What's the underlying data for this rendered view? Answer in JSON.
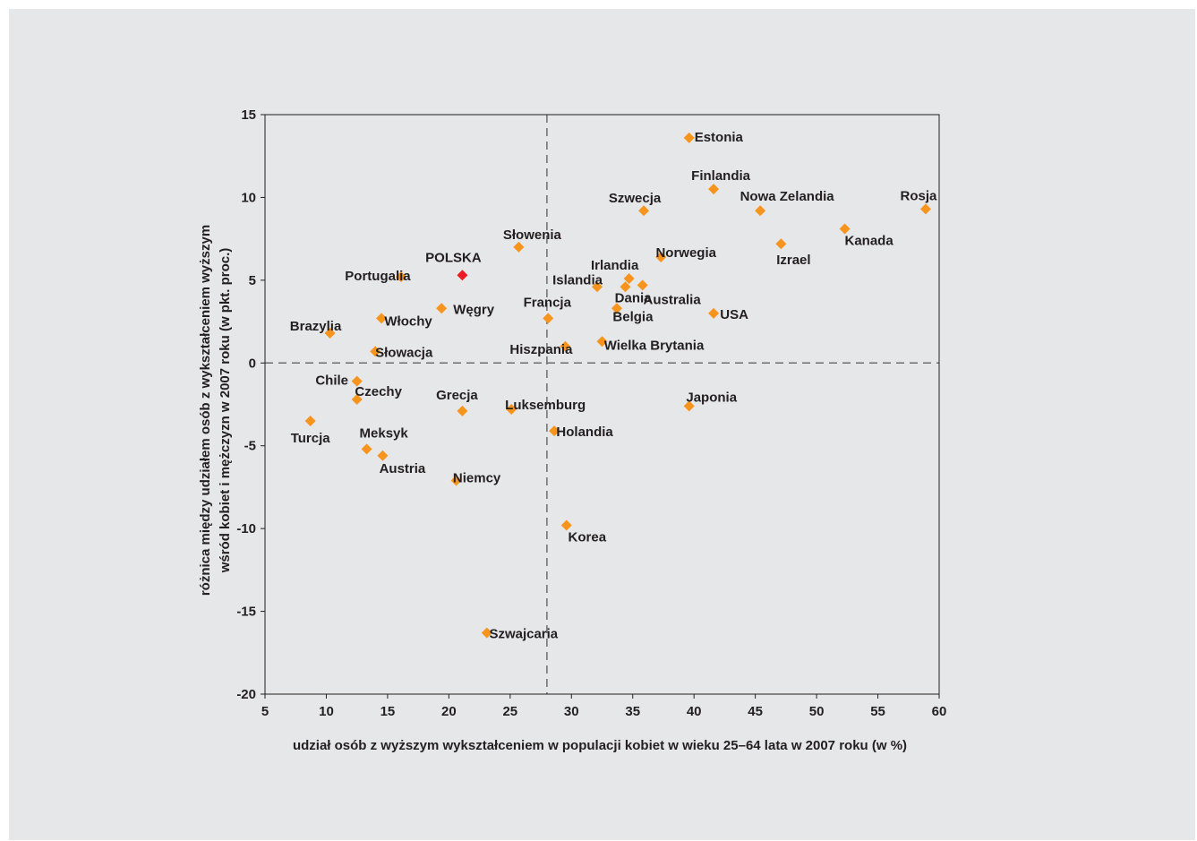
{
  "chart_data": {
    "type": "scatter",
    "title": "",
    "xlabel": "udział osób z wyższym wykształceniem w populacji kobiet w wieku 25–64 lata w 2007 roku (w %)",
    "ylabel_lines": [
      "różnica między udziałem osób z wykształceniem wyższym",
      "wśród kobiet i mężczyzn w 2007 roku (w pkt. proc.)"
    ],
    "xlim": [
      5,
      60
    ],
    "ylim": [
      -20,
      15
    ],
    "xticks": [
      5,
      10,
      15,
      20,
      25,
      30,
      35,
      40,
      45,
      50,
      55,
      60
    ],
    "yticks": [
      -20,
      -15,
      -10,
      -5,
      0,
      5,
      10,
      15
    ],
    "reference_lines": {
      "x": 28,
      "y": 0
    },
    "colors": {
      "default": "#f7941d",
      "highlight": "#ed1c24"
    },
    "grid": false,
    "points": [
      {
        "label": "Estonia",
        "x": 39.6,
        "y": 13.6
      },
      {
        "label": "Finlandia",
        "x": 41.6,
        "y": 10.5
      },
      {
        "label": "Szwecja",
        "x": 35.9,
        "y": 9.2
      },
      {
        "label": "Nowa Zelandia",
        "x": 45.4,
        "y": 9.2
      },
      {
        "label": "Rosja",
        "x": 58.9,
        "y": 9.3
      },
      {
        "label": "Kanada",
        "x": 52.3,
        "y": 8.1
      },
      {
        "label": "Izrael",
        "x": 47.1,
        "y": 7.2
      },
      {
        "label": "Słowenia",
        "x": 25.7,
        "y": 7.0
      },
      {
        "label": "Norwegia",
        "x": 37.3,
        "y": 6.4
      },
      {
        "label": "POLSKA",
        "x": 21.1,
        "y": 5.3,
        "highlight": true
      },
      {
        "label": "Portugalia",
        "x": 16.1,
        "y": 5.2
      },
      {
        "label": "Irlandia",
        "x": 34.7,
        "y": 5.1
      },
      {
        "label": "Islandia",
        "x": 32.1,
        "y": 4.6
      },
      {
        "label": "Australia",
        "x": 34.4,
        "y": 4.6
      },
      {
        "label": "Dania",
        "x": 35.8,
        "y": 4.7
      },
      {
        "label": "Belgia",
        "x": 33.7,
        "y": 3.3
      },
      {
        "label": "Węgry",
        "x": 19.4,
        "y": 3.3
      },
      {
        "label": "USA",
        "x": 41.6,
        "y": 3.0
      },
      {
        "label": "Francja",
        "x": 28.1,
        "y": 2.7
      },
      {
        "label": "Włochy",
        "x": 14.5,
        "y": 2.7
      },
      {
        "label": "Brazylia",
        "x": 10.3,
        "y": 1.8
      },
      {
        "label": "Wielka Brytania",
        "x": 32.5,
        "y": 1.3
      },
      {
        "label": "Hiszpania",
        "x": 29.5,
        "y": 1.0
      },
      {
        "label": "Słowacja",
        "x": 14.0,
        "y": 0.7
      },
      {
        "label": "Chile",
        "x": 12.5,
        "y": -1.1
      },
      {
        "label": "Czechy",
        "x": 12.5,
        "y": -2.2
      },
      {
        "label": "Japonia",
        "x": 39.6,
        "y": -2.6
      },
      {
        "label": "Luksemburg",
        "x": 25.1,
        "y": -2.8
      },
      {
        "label": "Grecja",
        "x": 21.1,
        "y": -2.9
      },
      {
        "label": "Turcja",
        "x": 8.7,
        "y": -3.5
      },
      {
        "label": "Holandia",
        "x": 28.6,
        "y": -4.1
      },
      {
        "label": "Meksyk",
        "x": 13.3,
        "y": -5.2
      },
      {
        "label": "Austria",
        "x": 14.6,
        "y": -5.6
      },
      {
        "label": "Niemcy",
        "x": 20.6,
        "y": -7.1
      },
      {
        "label": "Korea",
        "x": 29.6,
        "y": -9.8
      },
      {
        "label": "Szwajcaria",
        "x": 23.1,
        "y": -16.3
      }
    ]
  }
}
